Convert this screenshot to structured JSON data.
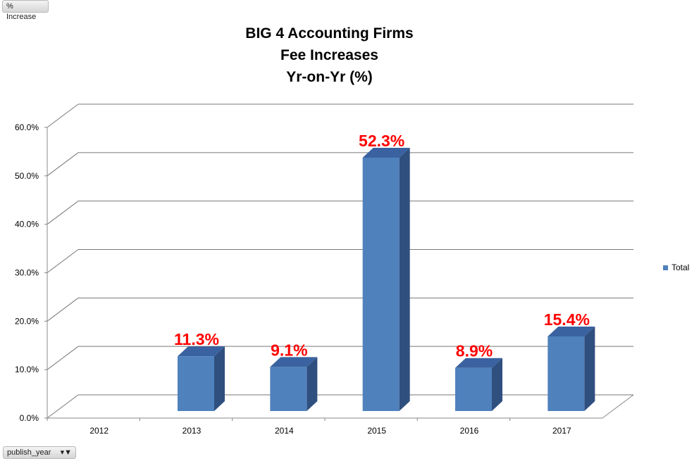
{
  "field_buttons": {
    "value_field": "% Increase",
    "axis_field": "publish_year"
  },
  "chart_data": {
    "type": "bar",
    "title_lines": [
      "BIG 4 Accounting Firms",
      "Fee Increases",
      "Yr-on-Yr (%)"
    ],
    "categories": [
      "2012",
      "2013",
      "2014",
      "2015",
      "2016",
      "2017"
    ],
    "series": [
      {
        "name": "Total",
        "values": [
          null,
          11.3,
          9.1,
          52.3,
          8.9,
          15.4
        ],
        "labels": [
          "",
          "11.3%",
          "9.1%",
          "52.3%",
          "8.9%",
          "15.4%"
        ]
      }
    ],
    "yticks": [
      "0.0%",
      "10.0%",
      "20.0%",
      "30.0%",
      "40.0%",
      "50.0%",
      "60.0%"
    ],
    "ylim": [
      0,
      60
    ],
    "grid": true,
    "legend": "right",
    "colors": {
      "bar": "#4f81bd",
      "bar_top": "#3a62a0",
      "bar_side": "#2f4f7f",
      "label": "#ff0000"
    }
  }
}
